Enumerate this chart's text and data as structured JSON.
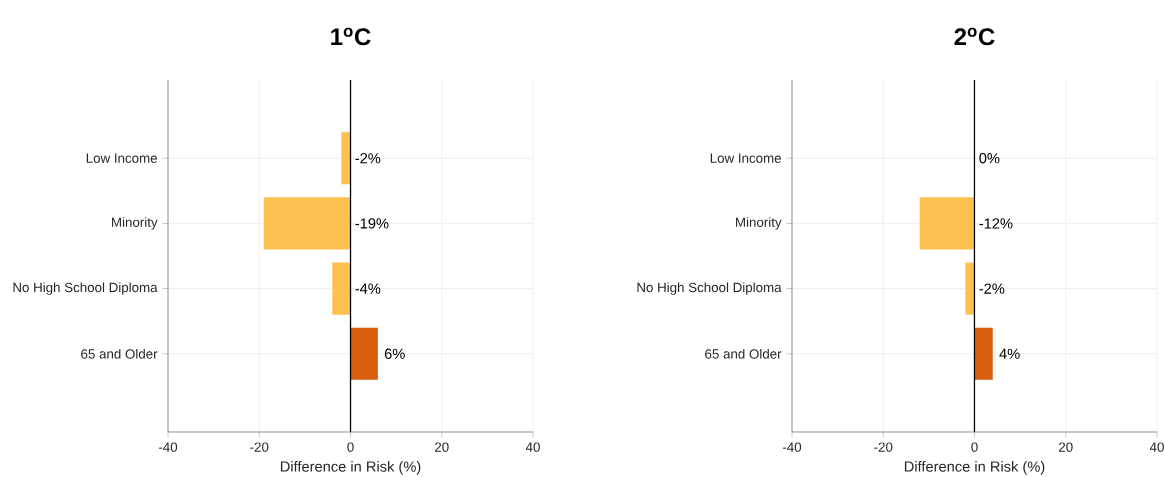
{
  "chart_data": [
    {
      "type": "bar",
      "orientation": "horizontal",
      "title": "1$^{o}$C",
      "xlabel": "Difference in Risk (%)",
      "categories": [
        "Low Income",
        "Minority",
        "No High School Diploma",
        "65 and Older"
      ],
      "values": [
        -2,
        -19,
        -4,
        6
      ],
      "colors": [
        "#fdc152",
        "#fdc152",
        "#fdc152",
        "#d95f0e"
      ],
      "value_labels": [
        "-2%",
        "-19%",
        "-4%",
        "6%"
      ],
      "xlim": [
        -40,
        40
      ],
      "xticks": [
        -40,
        -20,
        0,
        20,
        40
      ],
      "grid": true,
      "ref_lines": [
        {
          "axis": "x",
          "value": 0,
          "color": "#000000"
        }
      ]
    },
    {
      "type": "bar",
      "orientation": "horizontal",
      "title": "2$^{o}$C",
      "xlabel": "Difference in Risk (%)",
      "categories": [
        "Low Income",
        "Minority",
        "No High School Diploma",
        "65 and Older"
      ],
      "values": [
        0,
        -12,
        -2,
        4
      ],
      "colors": [
        "#fdc152",
        "#fdc152",
        "#fdc152",
        "#d95f0e"
      ],
      "value_labels": [
        "0%",
        "-12%",
        "-2%",
        "4%"
      ],
      "xlim": [
        -40,
        40
      ],
      "xticks": [
        -40,
        -20,
        0,
        20,
        40
      ],
      "grid": true,
      "ref_lines": [
        {
          "axis": "x",
          "value": 0,
          "color": "#000000"
        }
      ]
    }
  ]
}
